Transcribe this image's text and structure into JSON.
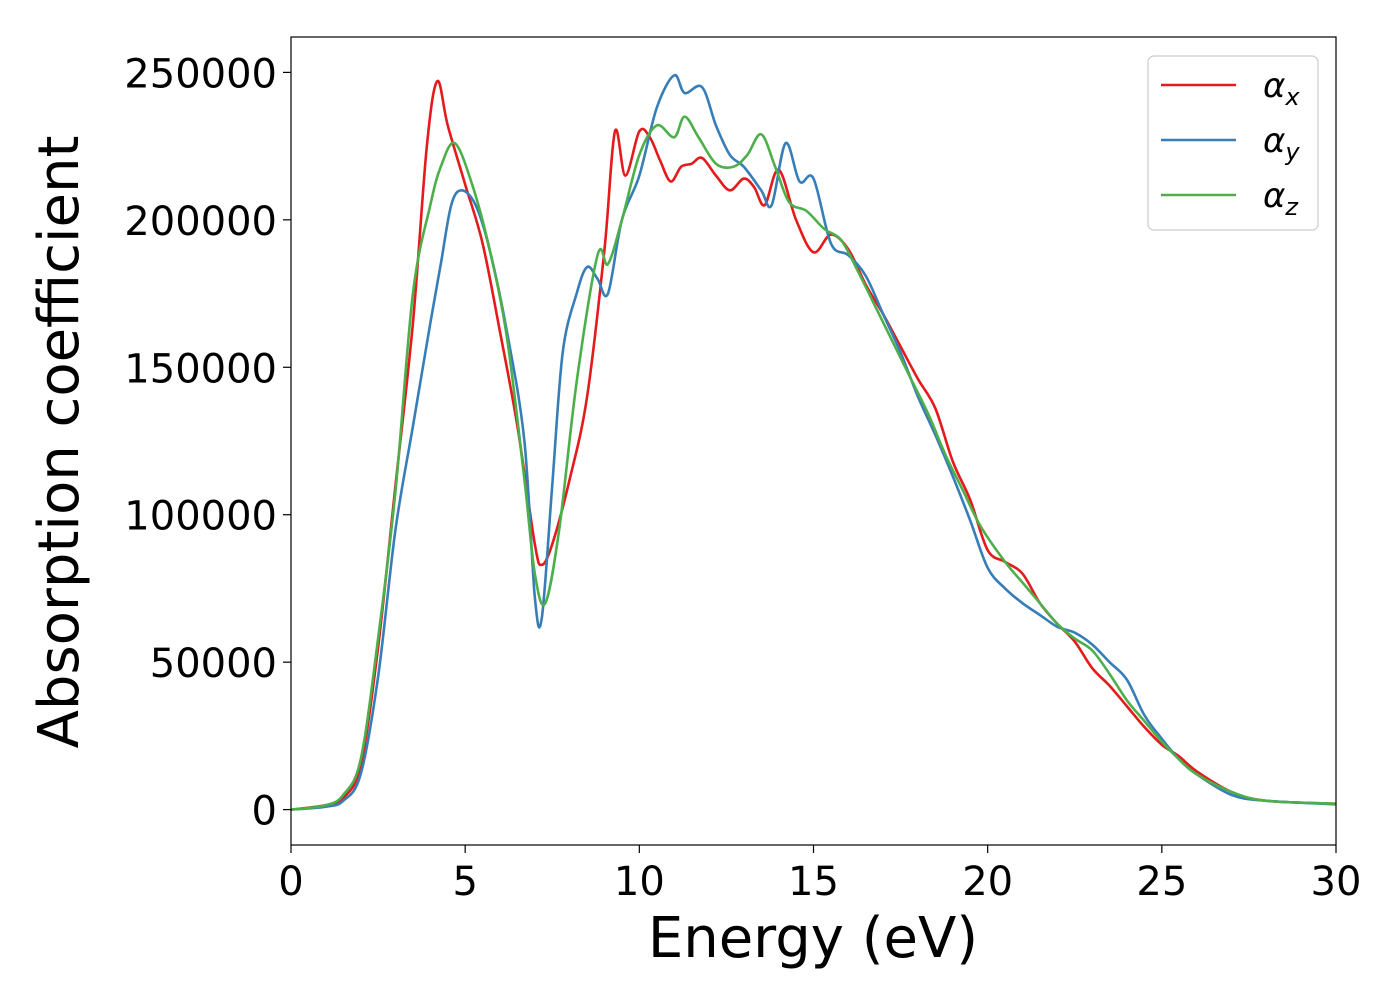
{
  "chart_data": {
    "type": "line",
    "title": "",
    "xlabel": "Energy (eV)",
    "ylabel": "Absorption coefficient",
    "xlim": [
      0,
      30
    ],
    "ylim": [
      -12000,
      262000
    ],
    "x_ticks": [
      0,
      5,
      10,
      15,
      20,
      25,
      30
    ],
    "x_tick_labels": [
      "0",
      "5",
      "10",
      "15",
      "20",
      "25",
      "30"
    ],
    "y_ticks": [
      0,
      50000,
      100000,
      150000,
      200000,
      250000
    ],
    "y_tick_labels": [
      "0",
      "50000",
      "100000",
      "150000",
      "200000",
      "250000"
    ],
    "grid": false,
    "legend_position": "top-right",
    "series": [
      {
        "name": "α_x",
        "label_base": "α",
        "label_sub": "x",
        "color": "#e41a1c",
        "points": [
          [
            0,
            0
          ],
          [
            1,
            1500
          ],
          [
            1.5,
            4000
          ],
          [
            2,
            15000
          ],
          [
            2.5,
            55000
          ],
          [
            3,
            110000
          ],
          [
            3.5,
            165000
          ],
          [
            3.9,
            225000
          ],
          [
            4.2,
            247000
          ],
          [
            4.5,
            232000
          ],
          [
            5,
            212000
          ],
          [
            5.5,
            192000
          ],
          [
            6,
            162000
          ],
          [
            6.5,
            130000
          ],
          [
            7,
            90000
          ],
          [
            7.2,
            83000
          ],
          [
            7.5,
            90000
          ],
          [
            8,
            112000
          ],
          [
            8.5,
            140000
          ],
          [
            9,
            190000
          ],
          [
            9.3,
            230000
          ],
          [
            9.6,
            215000
          ],
          [
            10,
            230000
          ],
          [
            10.3,
            228000
          ],
          [
            10.6,
            220000
          ],
          [
            10.9,
            213000
          ],
          [
            11.2,
            218000
          ],
          [
            11.5,
            219000
          ],
          [
            11.8,
            221000
          ],
          [
            12.2,
            215000
          ],
          [
            12.6,
            210000
          ],
          [
            13,
            214000
          ],
          [
            13.3,
            211000
          ],
          [
            13.6,
            205000
          ],
          [
            14,
            217000
          ],
          [
            14.5,
            200000
          ],
          [
            15,
            189000
          ],
          [
            15.5,
            195000
          ],
          [
            16,
            190000
          ],
          [
            16.5,
            178000
          ],
          [
            17,
            168000
          ],
          [
            17.5,
            157000
          ],
          [
            18,
            146000
          ],
          [
            18.5,
            136000
          ],
          [
            19,
            118000
          ],
          [
            19.5,
            105000
          ],
          [
            20,
            88000
          ],
          [
            20.5,
            84000
          ],
          [
            21,
            80000
          ],
          [
            21.5,
            70000
          ],
          [
            22,
            63000
          ],
          [
            22.5,
            57000
          ],
          [
            23,
            48000
          ],
          [
            23.5,
            42000
          ],
          [
            24,
            35000
          ],
          [
            24.5,
            28000
          ],
          [
            25,
            22000
          ],
          [
            25.5,
            18000
          ],
          [
            26,
            13000
          ],
          [
            27,
            6000
          ],
          [
            28,
            3000
          ],
          [
            30,
            2000
          ]
        ]
      },
      {
        "name": "α_y",
        "label_base": "α",
        "label_sub": "y",
        "color": "#377eb8",
        "points": [
          [
            0,
            0
          ],
          [
            1,
            1000
          ],
          [
            1.5,
            3000
          ],
          [
            2,
            12000
          ],
          [
            2.5,
            45000
          ],
          [
            3,
            95000
          ],
          [
            3.5,
            130000
          ],
          [
            4,
            165000
          ],
          [
            4.3,
            185000
          ],
          [
            4.6,
            205000
          ],
          [
            4.9,
            210000
          ],
          [
            5.3,
            205000
          ],
          [
            5.7,
            190000
          ],
          [
            6.2,
            162000
          ],
          [
            6.7,
            125000
          ],
          [
            7,
            72000
          ],
          [
            7.2,
            65000
          ],
          [
            7.5,
            110000
          ],
          [
            7.8,
            155000
          ],
          [
            8.2,
            175000
          ],
          [
            8.5,
            184000
          ],
          [
            8.8,
            180000
          ],
          [
            9.1,
            175000
          ],
          [
            9.5,
            200000
          ],
          [
            10,
            215000
          ],
          [
            10.5,
            238000
          ],
          [
            11,
            249000
          ],
          [
            11.3,
            243000
          ],
          [
            11.8,
            245000
          ],
          [
            12.2,
            232000
          ],
          [
            12.6,
            222000
          ],
          [
            13,
            218000
          ],
          [
            13.5,
            210000
          ],
          [
            13.8,
            205000
          ],
          [
            14.2,
            226000
          ],
          [
            14.6,
            213000
          ],
          [
            15,
            214000
          ],
          [
            15.5,
            192000
          ],
          [
            16,
            188000
          ],
          [
            16.5,
            181000
          ],
          [
            17,
            168000
          ],
          [
            17.5,
            155000
          ],
          [
            18,
            140000
          ],
          [
            18.5,
            127000
          ],
          [
            19,
            113000
          ],
          [
            19.5,
            98000
          ],
          [
            20,
            82000
          ],
          [
            20.5,
            75000
          ],
          [
            21,
            70000
          ],
          [
            21.5,
            66000
          ],
          [
            22,
            62000
          ],
          [
            22.5,
            60000
          ],
          [
            23,
            56000
          ],
          [
            23.5,
            50000
          ],
          [
            24,
            44000
          ],
          [
            24.5,
            32000
          ],
          [
            25,
            24000
          ],
          [
            25.5,
            17000
          ],
          [
            26,
            12000
          ],
          [
            27,
            5000
          ],
          [
            28,
            3000
          ],
          [
            30,
            1800
          ]
        ]
      },
      {
        "name": "α_z",
        "label_base": "α",
        "label_sub": "z",
        "color": "#4daf4a",
        "points": [
          [
            0,
            0
          ],
          [
            1,
            1500
          ],
          [
            1.5,
            5000
          ],
          [
            2,
            17000
          ],
          [
            2.5,
            58000
          ],
          [
            3,
            108000
          ],
          [
            3.5,
            175000
          ],
          [
            4,
            205000
          ],
          [
            4.3,
            218000
          ],
          [
            4.7,
            226000
          ],
          [
            5.2,
            212000
          ],
          [
            5.7,
            190000
          ],
          [
            6.2,
            160000
          ],
          [
            6.7,
            112000
          ],
          [
            7,
            80000
          ],
          [
            7.3,
            70000
          ],
          [
            7.7,
            95000
          ],
          [
            8.2,
            145000
          ],
          [
            8.8,
            188000
          ],
          [
            9.1,
            185000
          ],
          [
            9.5,
            200000
          ],
          [
            10,
            222000
          ],
          [
            10.5,
            232000
          ],
          [
            11,
            228000
          ],
          [
            11.3,
            235000
          ],
          [
            11.7,
            228000
          ],
          [
            12.2,
            219000
          ],
          [
            12.7,
            218000
          ],
          [
            13.1,
            222000
          ],
          [
            13.5,
            229000
          ],
          [
            13.9,
            218000
          ],
          [
            14.3,
            206000
          ],
          [
            14.8,
            203000
          ],
          [
            15.3,
            197000
          ],
          [
            15.8,
            193000
          ],
          [
            16.3,
            182000
          ],
          [
            16.8,
            170000
          ],
          [
            17.3,
            158000
          ],
          [
            17.8,
            146000
          ],
          [
            18.3,
            134000
          ],
          [
            18.8,
            120000
          ],
          [
            19.3,
            108000
          ],
          [
            19.8,
            96000
          ],
          [
            20.5,
            84000
          ],
          [
            21,
            77000
          ],
          [
            21.5,
            70000
          ],
          [
            22,
            63000
          ],
          [
            22.5,
            58000
          ],
          [
            23,
            54000
          ],
          [
            23.5,
            46000
          ],
          [
            24,
            37000
          ],
          [
            24.5,
            30000
          ],
          [
            25,
            23000
          ],
          [
            25.5,
            17000
          ],
          [
            26,
            12000
          ],
          [
            27,
            6000
          ],
          [
            28,
            3000
          ],
          [
            30,
            2000
          ]
        ]
      }
    ]
  }
}
